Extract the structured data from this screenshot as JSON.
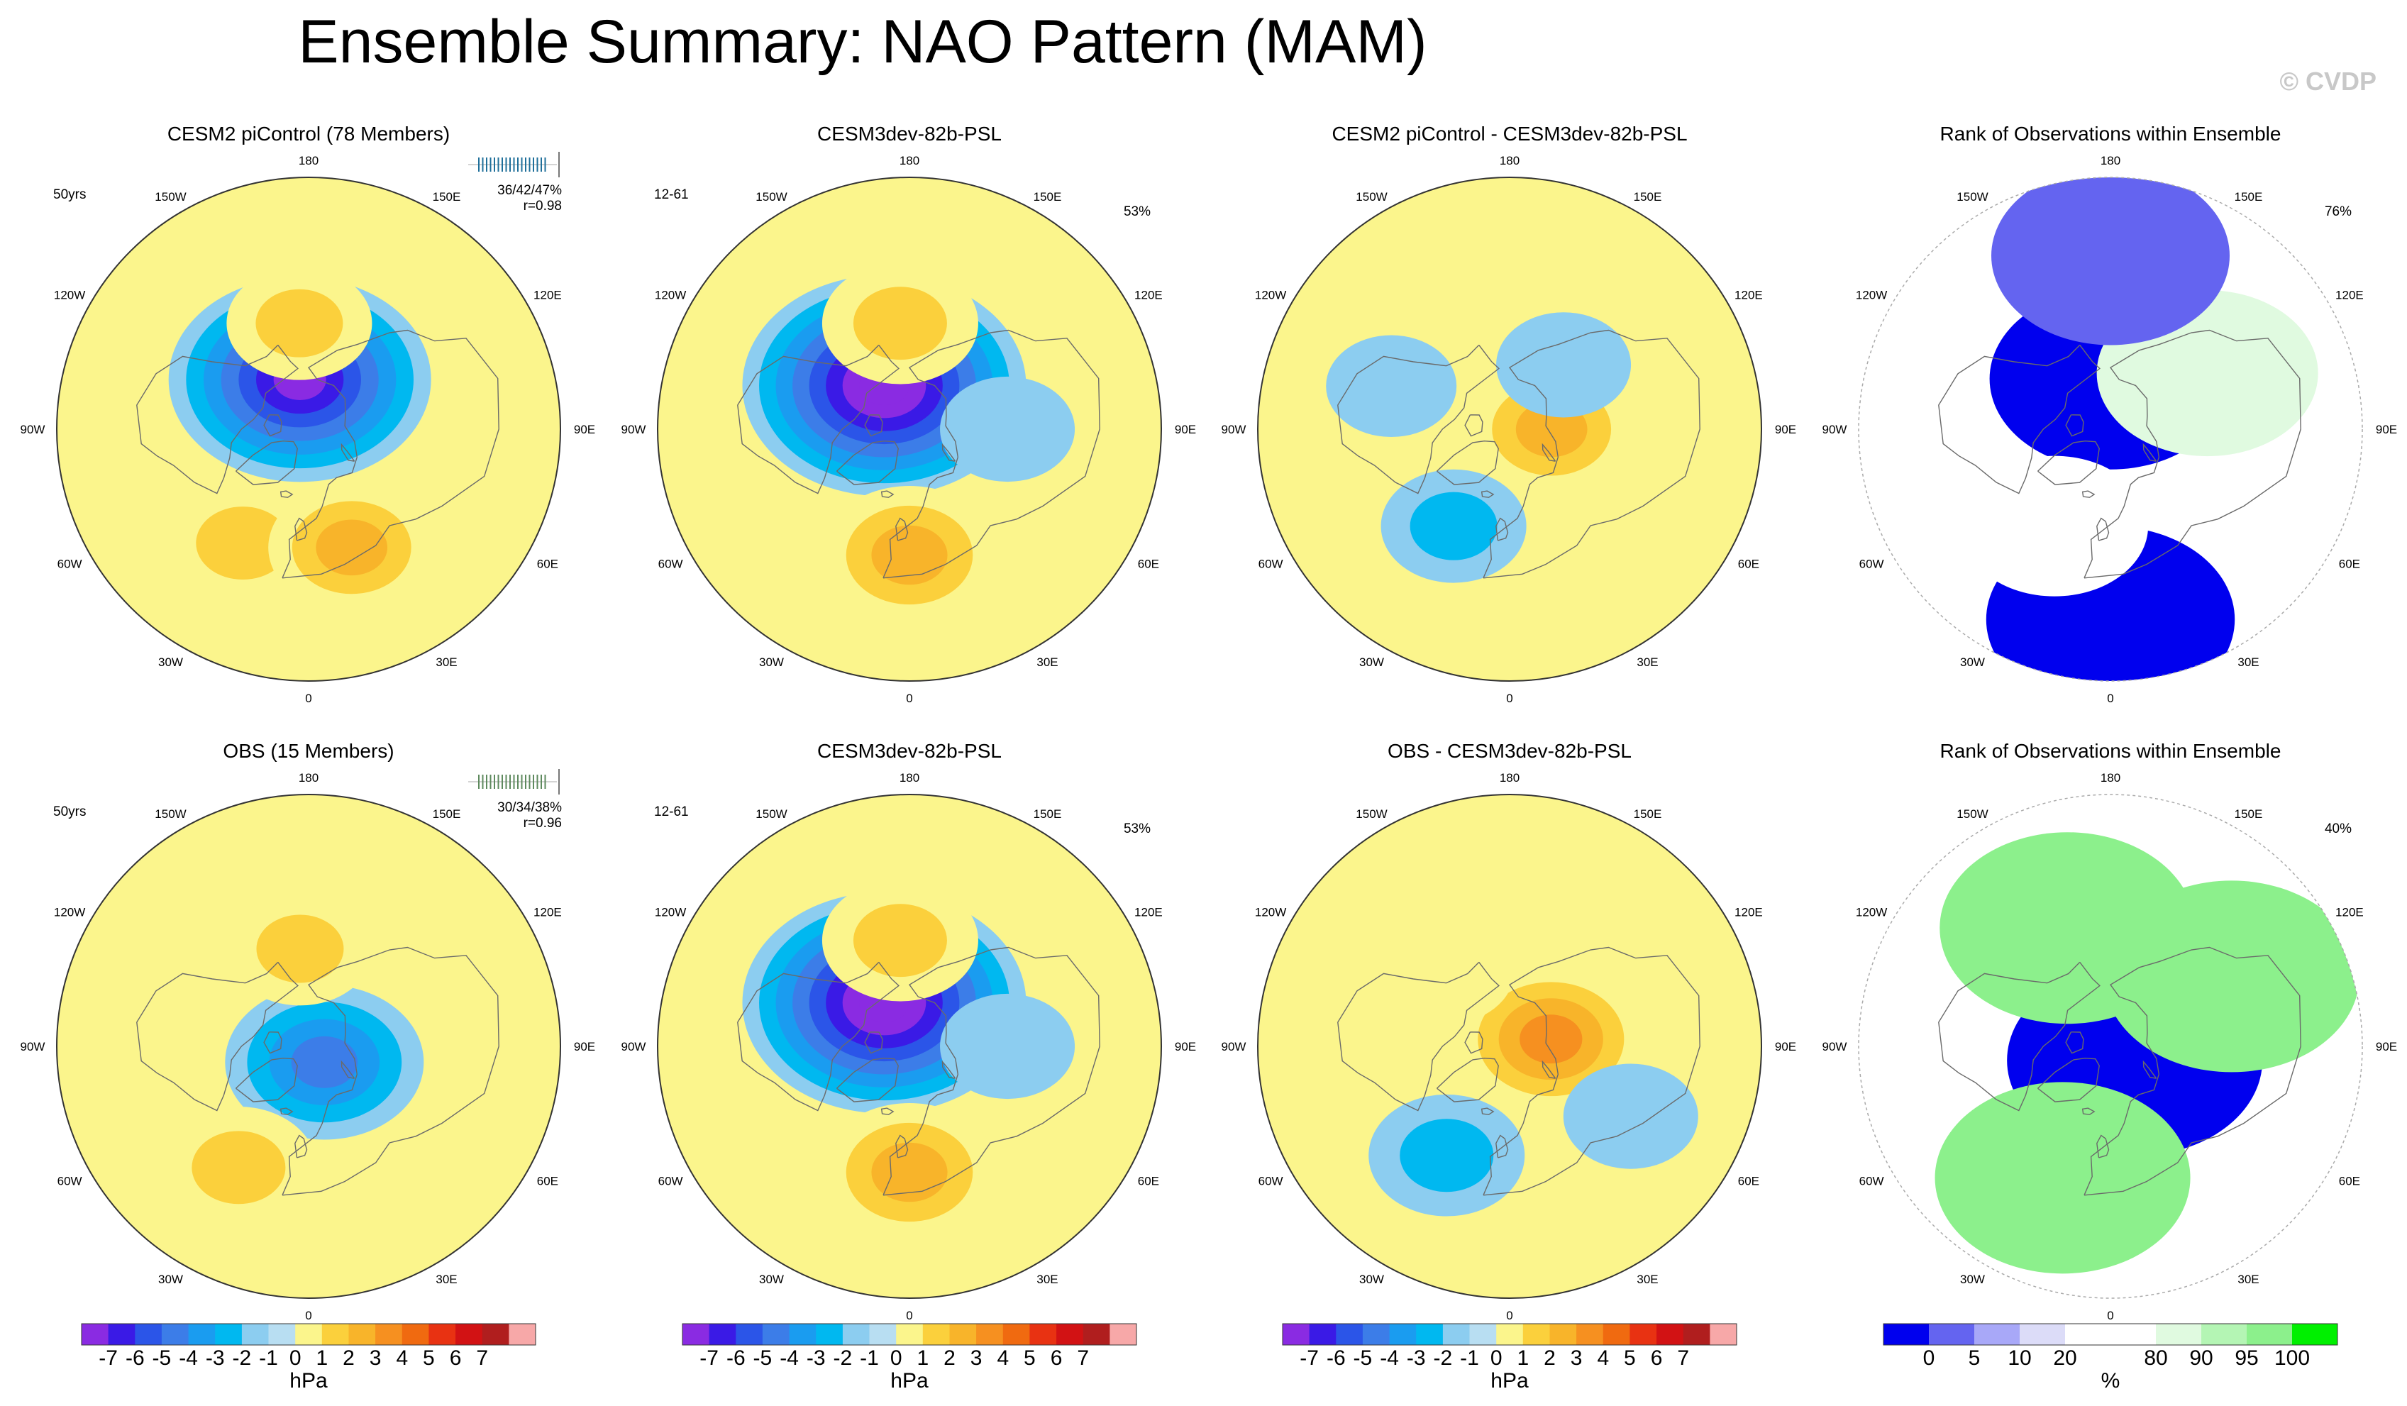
{
  "page": {
    "title": "Ensemble Summary: NAO Pattern (MAM)",
    "watermark": "© CVDP"
  },
  "lon_labels": [
    "180",
    "150E",
    "120E",
    "90E",
    "60E",
    "30E",
    "0",
    "30W",
    "60W",
    "90W",
    "120W",
    "150W"
  ],
  "colors": {
    "psl_scale": [
      "#8a2be2",
      "#3a1ae6",
      "#2b55e8",
      "#3c7de8",
      "#1a9cf0",
      "#00b8f0",
      "#8ccdf0",
      "#b8def2",
      "#fbf58c",
      "#fbd03c",
      "#f8b42a",
      "#f69020",
      "#f06a10",
      "#e83212",
      "#d21214",
      "#b01e1e",
      "#f7a8a8"
    ],
    "rank_scale": [
      "#0000ee",
      "#6464f0",
      "#a8a8f8",
      "#dcdcf8",
      "#ffffff",
      "#ffffff",
      "#e0fae0",
      "#b4f5b4",
      "#8cf08c",
      "#00f000"
    ],
    "ocean": "#b6def2",
    "base": "#fbf58c"
  },
  "colorbars": {
    "psl_labels": [
      "-7",
      "-6",
      "-5",
      "-4",
      "-3",
      "-2",
      "-1",
      "0",
      "1",
      "2",
      "3",
      "4",
      "5",
      "6",
      "7"
    ],
    "psl_unit": "hPa",
    "rank_labels": [
      "0",
      "5",
      "10",
      "20",
      "80",
      "90",
      "95",
      "100"
    ],
    "rank_unit": "%"
  },
  "chart_data": [
    {
      "type": "contour-map",
      "id": "p11",
      "title": "CESM2 piControl (78 Members)",
      "title_color": "#1f6f9a",
      "top_left": "50yrs",
      "stats": "36/42/47%",
      "corr": "r=0.98",
      "fields": [
        {
          "lon": 190,
          "lat": 72,
          "value": -7
        },
        {
          "lon": 330,
          "lat": 43,
          "value": 2
        },
        {
          "lon": 20,
          "lat": 45,
          "value": 2.5
        },
        {
          "lon": 185,
          "lat": 52,
          "value": 1.5
        }
      ]
    },
    {
      "type": "contour-map",
      "id": "p12",
      "title": "CESM3dev-82b-PSL",
      "top_left": "12-61",
      "top_right": "53%",
      "fields": [
        {
          "lon": 210,
          "lat": 72,
          "value": -8
        },
        {
          "lon": 0,
          "lat": 45,
          "value": 3
        },
        {
          "lon": 185,
          "lat": 52,
          "value": 2
        },
        {
          "lon": 90,
          "lat": 55,
          "value": -1
        }
      ]
    },
    {
      "type": "contour-map",
      "id": "p13",
      "title": "CESM2 piControl - CESM3dev-82b-PSL",
      "fields": [
        {
          "lon": 90,
          "lat": 75,
          "value": 2.5
        },
        {
          "lon": 330,
          "lat": 50,
          "value": -1.5
        },
        {
          "lon": 140,
          "lat": 60,
          "value": -1
        },
        {
          "lon": 250,
          "lat": 45,
          "value": -0.8
        }
      ]
    },
    {
      "type": "rank-map",
      "id": "p14",
      "title": "Rank of Observations within Ensemble",
      "top_right": "76%",
      "fields": [
        {
          "lon": 180,
          "lat": 72,
          "value": 4
        },
        {
          "lon": 0,
          "lat": 22,
          "value": 2
        },
        {
          "lon": 330,
          "lat": 50,
          "value": 80
        },
        {
          "lon": 120,
          "lat": 50,
          "value": 90
        },
        {
          "lon": 180,
          "lat": 28,
          "value": 5
        }
      ]
    },
    {
      "type": "contour-map",
      "id": "p21",
      "title": "OBS (15 Members)",
      "title_color": "#5e8a5e",
      "top_left": "50yrs",
      "stats": "30/34/38%",
      "corr": "r=0.96",
      "fields": [
        {
          "lon": 45,
          "lat": 82,
          "value": -4
        },
        {
          "lon": 330,
          "lat": 40,
          "value": 2
        },
        {
          "lon": 185,
          "lat": 55,
          "value": 1.5
        }
      ]
    },
    {
      "type": "contour-map",
      "id": "p22",
      "title": "CESM3dev-82b-PSL",
      "top_left": "12-61",
      "top_right": "53%",
      "fields": [
        {
          "lon": 210,
          "lat": 72,
          "value": -8
        },
        {
          "lon": 0,
          "lat": 45,
          "value": 3
        },
        {
          "lon": 185,
          "lat": 52,
          "value": 2
        },
        {
          "lon": 90,
          "lat": 55,
          "value": -1
        }
      ]
    },
    {
      "type": "contour-map",
      "id": "p23",
      "title": "OBS - CESM3dev-82b-PSL",
      "fields": [
        {
          "lon": 100,
          "lat": 75,
          "value": 3.5
        },
        {
          "lon": 330,
          "lat": 45,
          "value": -2
        },
        {
          "lon": 220,
          "lat": 55,
          "value": 1
        },
        {
          "lon": 60,
          "lat": 40,
          "value": -1
        }
      ]
    },
    {
      "type": "rank-map",
      "id": "p24",
      "title": "Rank of Observations within Ensemble",
      "top_right": "40%",
      "fields": [
        {
          "lon": 60,
          "lat": 80,
          "value": 0
        },
        {
          "lon": 340,
          "lat": 40,
          "value": 100
        },
        {
          "lon": 200,
          "lat": 45,
          "value": 100
        },
        {
          "lon": 120,
          "lat": 40,
          "value": 100
        }
      ]
    }
  ]
}
